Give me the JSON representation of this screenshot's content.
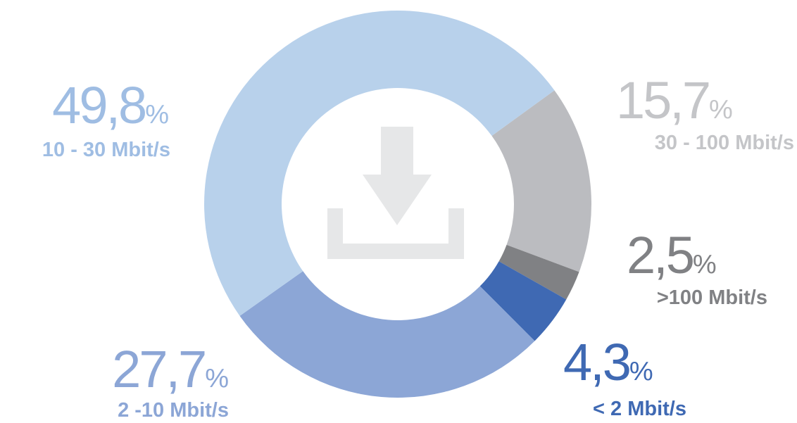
{
  "chart_data": {
    "type": "pie",
    "donut": true,
    "categories": [
      "30 - 100 Mbit/s",
      ">100 Mbit/s",
      "< 2 Mbit/s",
      "2 -10 Mbit/s",
      "10 - 30 Mbit/s"
    ],
    "values": [
      15.7,
      2.5,
      4.3,
      27.7,
      49.8
    ],
    "value_labels": [
      "15,7%",
      "2,5%",
      "4,3%",
      "27,7%",
      "49,8%"
    ],
    "colors": [
      "#bbbcc0",
      "#808184",
      "#3f69b3",
      "#8ca6d6",
      "#b8d1eb"
    ],
    "label_colors": [
      "#c4c5c8",
      "#808184",
      "#3f69b3",
      "#8ca6d6",
      "#9fbde3"
    ]
  }
}
